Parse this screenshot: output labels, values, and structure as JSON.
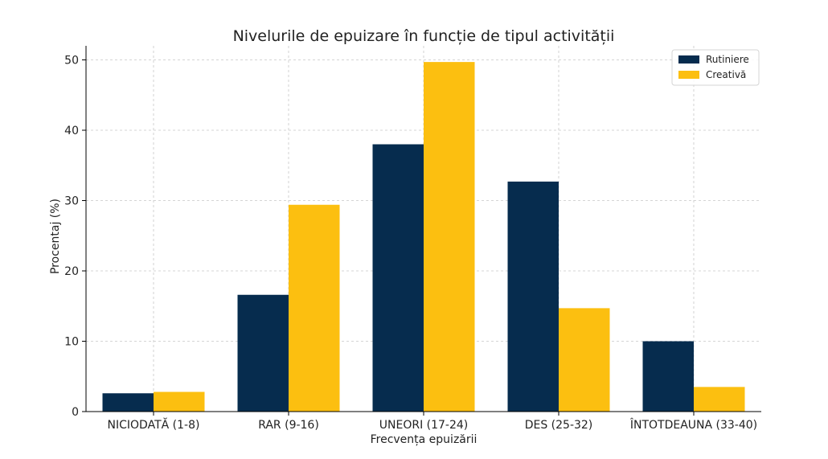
{
  "chart_data": {
    "type": "bar",
    "title": "Nivelurile de epuizare în funcție de tipul activității",
    "xlabel": "Frecvența epuizării",
    "ylabel": "Procentaj (%)",
    "categories": [
      "NICIODATĂ (1-8)",
      "RAR (9-16)",
      "UNEORI (17-24)",
      "DES (25-32)",
      "ÎNTOTDEAUNA (33-40)"
    ],
    "series": [
      {
        "name": "Rutiniere",
        "color": "#062c4e",
        "values": [
          2.6,
          16.6,
          38.0,
          32.7,
          10.0
        ]
      },
      {
        "name": "Creativă",
        "color": "#fcbf10",
        "values": [
          2.8,
          29.4,
          49.7,
          14.7,
          3.5
        ]
      }
    ],
    "ylim": [
      0,
      52
    ],
    "yticks": [
      0,
      10,
      20,
      30,
      40,
      50
    ],
    "grid": true,
    "legend_position": "top-right"
  }
}
